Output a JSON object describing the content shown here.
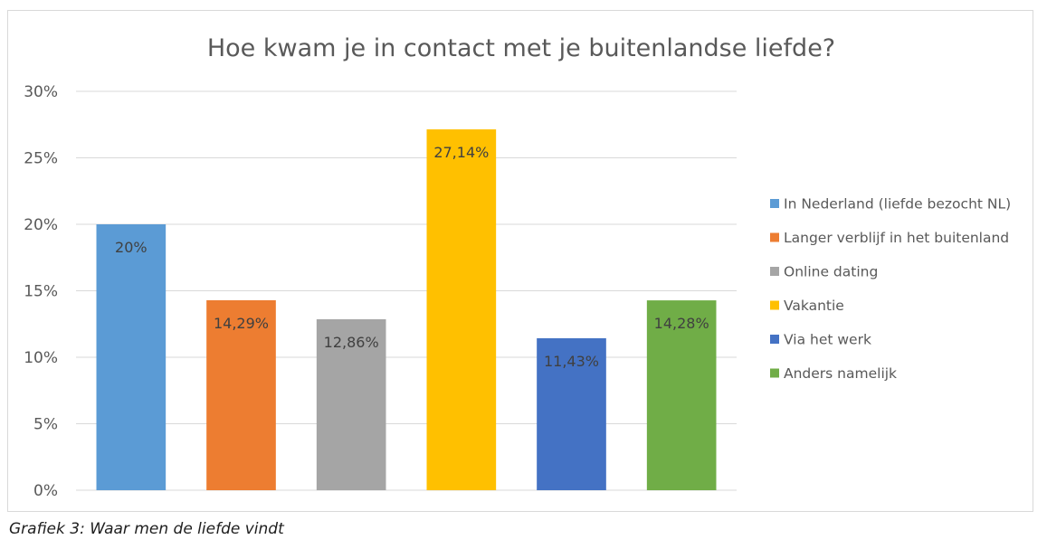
{
  "chart_data": {
    "type": "bar",
    "title": "Hoe kwam je in contact met je buitenlandse liefde?",
    "categories": [
      "In Nederland (liefde bezocht NL)",
      "Langer verblijf in het buitenland",
      "Online dating",
      "Vakantie",
      "Via het werk",
      "Anders namelijk"
    ],
    "values": [
      20,
      14.29,
      12.86,
      27.14,
      11.43,
      14.28
    ],
    "data_labels": [
      "20%",
      "14,29%",
      "12,86%",
      "27,14%",
      "11,43%",
      "14,28%"
    ],
    "colors": [
      "#5b9bd5",
      "#ed7d31",
      "#a5a5a5",
      "#ffc000",
      "#4472c4",
      "#70ad47"
    ],
    "ylim": [
      0,
      30
    ],
    "y_ticks": [
      {
        "value": 0,
        "label": "0%"
      },
      {
        "value": 5,
        "label": "5%"
      },
      {
        "value": 10,
        "label": "10%"
      },
      {
        "value": 15,
        "label": "15%"
      },
      {
        "value": 20,
        "label": "20%"
      },
      {
        "value": 25,
        "label": "25%"
      },
      {
        "value": 30,
        "label": "30%"
      }
    ],
    "grid": true,
    "legend_position": "right"
  },
  "caption": "Grafiek 3: Waar men de liefde vindt"
}
